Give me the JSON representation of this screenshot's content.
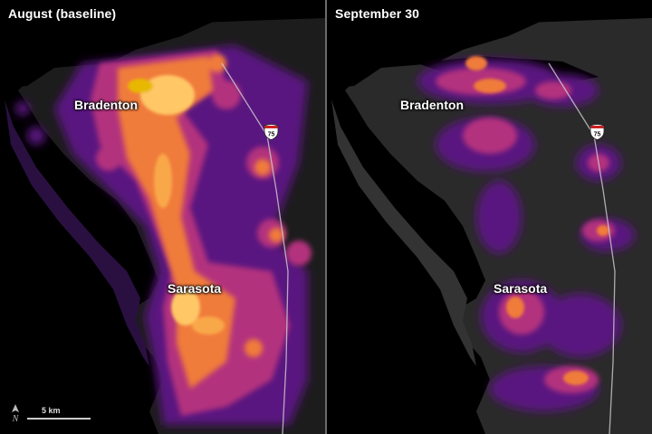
{
  "panels": {
    "left": {
      "title": "August (baseline)"
    },
    "right": {
      "title": "September 30"
    }
  },
  "labels": {
    "city_north": "Bradenton",
    "city_south": "Sarasota",
    "interstate": "75"
  },
  "scale": {
    "label": "5 km"
  },
  "colors": {
    "background": "#000000",
    "land": "#1e1e1e",
    "light_low": "#5a1580",
    "light_mid": "#c23a8c",
    "light_high": "#f58a3c",
    "light_peak": "#ffd86a",
    "divider": "#6a6a6a"
  }
}
